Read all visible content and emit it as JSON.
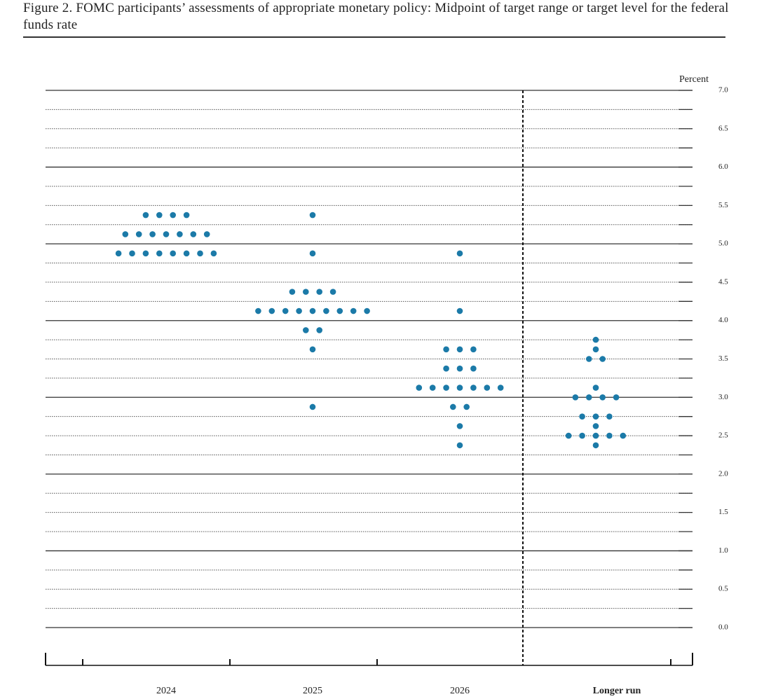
{
  "chart_data": {
    "type": "dot",
    "title": "Figure 2.  FOMC participants’ assessments of appropriate monetary policy: Midpoint of target range or target level for the federal funds rate",
    "y_label": "Percent",
    "categories": [
      "2024",
      "2025",
      "2026",
      "Longer run"
    ],
    "color": "#1b7aa8",
    "ylim": [
      0,
      7
    ],
    "yticks": [
      {
        "value": 0,
        "label": "0.0"
      },
      0.5,
      {
        "value": 1,
        "label": "1.0"
      },
      1.5,
      {
        "value": 2,
        "label": "2.0"
      },
      2.5,
      {
        "value": 3,
        "label": "3.0"
      },
      3.5,
      {
        "value": 4,
        "label": "4.0"
      },
      4.5,
      {
        "value": 5,
        "label": "5.0"
      },
      5.5,
      {
        "value": 6,
        "label": "6.0"
      },
      6.5,
      {
        "value": 7,
        "label": "7.0"
      }
    ],
    "grid": true,
    "dots": [
      {
        "values": [
          5.375,
          5.125,
          4.875
        ],
        "counts": [
          4,
          7,
          8
        ]
      },
      {
        "values": [
          5.375,
          4.875,
          4.375,
          4.125,
          3.875,
          3.625,
          2.875
        ],
        "counts": [
          1,
          1,
          4,
          9,
          2,
          1,
          1
        ]
      },
      {
        "values": [
          4.875,
          4.125,
          3.625,
          3.375,
          3.125,
          2.875,
          2.625,
          2.375
        ],
        "counts": [
          1,
          1,
          3,
          3,
          7,
          2,
          1,
          1
        ]
      },
      {
        "values": [
          3.75,
          3.625,
          3.5,
          3.125,
          3.0,
          2.75,
          2.625,
          2.5,
          2.375
        ],
        "counts": [
          1,
          1,
          2,
          1,
          4,
          3,
          1,
          5,
          1
        ]
      }
    ]
  }
}
